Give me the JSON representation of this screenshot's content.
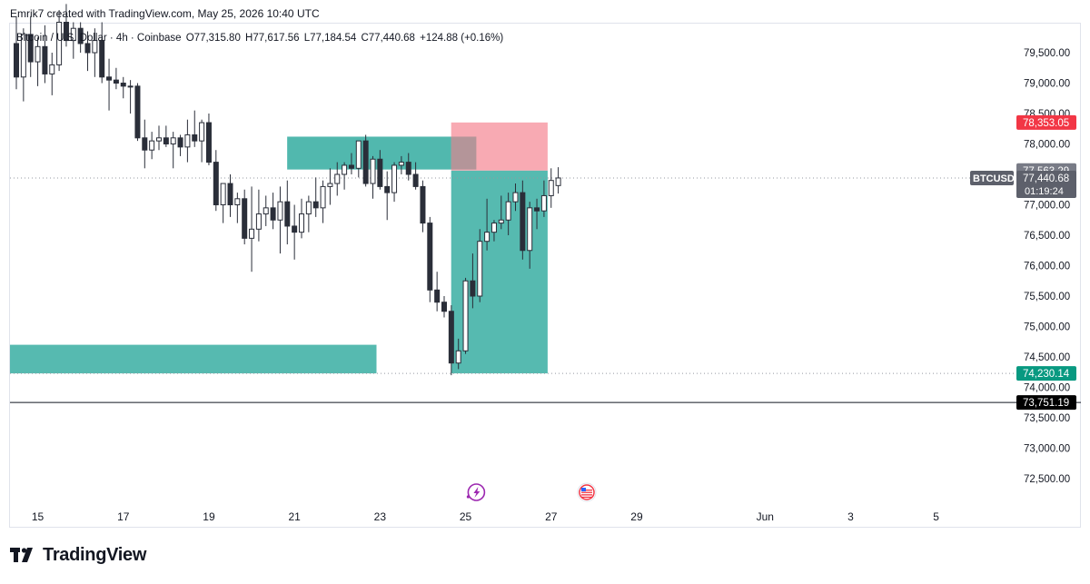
{
  "header": {
    "credit": "Emrik7 created with TradingView.com, May 25, 2026 10:40 UTC"
  },
  "legend": {
    "symbol": "Bitcoin / U.S. Dollar · 4h · Coinbase",
    "open": "O77,315.80",
    "high": "H77,617.56",
    "low": "L77,184.54",
    "close": "C77,440.68",
    "change": "+124.88 (+0.16%)"
  },
  "brand": {
    "name": "TradingView"
  },
  "colors": {
    "candle": "#2a2e39",
    "zone": "#26a69a",
    "stop": "#f7a1ab",
    "red_tag": "#f23645",
    "teal_tag": "#089981",
    "price_tag": "#5d606b",
    "black_tag": "#000000"
  },
  "chart_data": {
    "type": "candlestick",
    "symbol": "BTCUSD",
    "timeframe": "4h",
    "exchange": "Coinbase",
    "x_axis": {
      "ticks": [
        {
          "label": "15",
          "index": 3
        },
        {
          "label": "17",
          "index": 15
        },
        {
          "label": "19",
          "index": 27
        },
        {
          "label": "21",
          "index": 39
        },
        {
          "label": "23",
          "index": 51
        },
        {
          "label": "25",
          "index": 63
        },
        {
          "label": "27",
          "index": 75
        },
        {
          "label": "29",
          "index": 87
        },
        {
          "label": "Jun",
          "index": 105
        },
        {
          "label": "3",
          "index": 117
        },
        {
          "label": "5",
          "index": 129
        }
      ]
    },
    "y_axis": {
      "range": [
        72000,
        80000
      ],
      "ticks": [
        {
          "value": 72500,
          "label": "72,500.00"
        },
        {
          "value": 73000,
          "label": "73,000.00"
        },
        {
          "value": 73500,
          "label": "73,500.00"
        },
        {
          "value": 74000,
          "label": "74,000.00"
        },
        {
          "value": 74500,
          "label": "74,500.00"
        },
        {
          "value": 75000,
          "label": "75,000.00"
        },
        {
          "value": 75500,
          "label": "75,500.00"
        },
        {
          "value": 76000,
          "label": "76,000.00"
        },
        {
          "value": 76500,
          "label": "76,500.00"
        },
        {
          "value": 77000,
          "label": "77,000.00"
        },
        {
          "value": 78000,
          "label": "78,000.00"
        },
        {
          "value": 78500,
          "label": "78,500.00"
        },
        {
          "value": 79000,
          "label": "79,000.00"
        },
        {
          "value": 79500,
          "label": "79,500.00"
        }
      ]
    },
    "price_tags": [
      {
        "value": 78353.05,
        "label": "78,353.05",
        "style": "red"
      },
      {
        "value": 77563.29,
        "label": "77,563.29",
        "style": "gray"
      },
      {
        "value": 77440.68,
        "label": "77,440.68",
        "style": "current",
        "symbol": "BTCUSD",
        "countdown": "01:19:24"
      },
      {
        "value": 74230.14,
        "label": "74,230.14",
        "style": "teal"
      },
      {
        "value": 73751.19,
        "label": "73,751.19",
        "style": "black"
      }
    ],
    "horizontal_line": {
      "value": 73751.19
    },
    "zones": [
      {
        "kind": "demand",
        "from_index": 0,
        "to_index": 50,
        "low": 74230.14,
        "high": 74700
      },
      {
        "kind": "supply",
        "from_index": 39,
        "to_index": 64,
        "low": 77580,
        "high": 78120
      },
      {
        "kind": "target",
        "from_index": 62,
        "to_index": 74,
        "low": 74230.14,
        "high": 77563.29
      },
      {
        "kind": "stop",
        "from_index": 62,
        "to_index": 74,
        "low": 77563.29,
        "high": 78353.05
      }
    ],
    "event_markers": [
      {
        "name": "lightning-event",
        "index": 64
      },
      {
        "name": "us-flag-event",
        "index": 80
      }
    ],
    "candles": [
      [
        79650,
        80100,
        78900,
        79100
      ],
      [
        79100,
        79900,
        78700,
        79800
      ],
      [
        79800,
        80100,
        79100,
        79350
      ],
      [
        79350,
        79750,
        78950,
        79600
      ],
      [
        79600,
        79950,
        79000,
        79150
      ],
      [
        79150,
        79500,
        78800,
        79300
      ],
      [
        79300,
        80200,
        79200,
        80000
      ],
      [
        80000,
        80300,
        79600,
        79700
      ],
      [
        79700,
        80000,
        79400,
        79900
      ],
      [
        79900,
        80000,
        79500,
        79650
      ],
      [
        79650,
        79850,
        79200,
        79500
      ],
      [
        79500,
        79900,
        79100,
        79700
      ],
      [
        79700,
        80000,
        79000,
        79100
      ],
      [
        79100,
        79400,
        78550,
        79050
      ],
      [
        79050,
        79250,
        78900,
        79000
      ],
      [
        79000,
        79100,
        78750,
        78950
      ],
      [
        78950,
        79050,
        78500,
        78950
      ],
      [
        78950,
        79000,
        78050,
        78100
      ],
      [
        78100,
        78400,
        77600,
        77900
      ],
      [
        77900,
        78200,
        77750,
        78050
      ],
      [
        78050,
        78300,
        77900,
        78100
      ],
      [
        78100,
        78300,
        77950,
        78000
      ],
      [
        78000,
        78200,
        77600,
        78100
      ],
      [
        78100,
        78150,
        77800,
        77950
      ],
      [
        77950,
        78400,
        77700,
        78150
      ],
      [
        78150,
        78550,
        77950,
        78050
      ],
      [
        78050,
        78400,
        77700,
        78350
      ],
      [
        78350,
        78500,
        77650,
        77700
      ],
      [
        77700,
        77900,
        76900,
        77000
      ],
      [
        77000,
        77300,
        76700,
        77350
      ],
      [
        77350,
        77500,
        76800,
        77000
      ],
      [
        77000,
        77200,
        76700,
        77100
      ],
      [
        77100,
        77250,
        76350,
        76450
      ],
      [
        76450,
        77300,
        75900,
        76600
      ],
      [
        76600,
        77250,
        76400,
        76850
      ],
      [
        76850,
        77150,
        76650,
        76950
      ],
      [
        76950,
        77200,
        76600,
        76750
      ],
      [
        76750,
        77300,
        76200,
        77050
      ],
      [
        77050,
        77400,
        76350,
        76650
      ],
      [
        76650,
        77000,
        76100,
        76550
      ],
      [
        76550,
        77100,
        76450,
        76850
      ],
      [
        76850,
        77150,
        76550,
        77050
      ],
      [
        77050,
        77450,
        76800,
        76950
      ],
      [
        76950,
        77400,
        76700,
        77300
      ],
      [
        77300,
        77600,
        77000,
        77350
      ],
      [
        77350,
        77700,
        77150,
        77500
      ],
      [
        77500,
        77700,
        77250,
        77650
      ],
      [
        77650,
        77850,
        77500,
        77600
      ],
      [
        77600,
        78000,
        77450,
        78050
      ],
      [
        78050,
        78150,
        77300,
        77350
      ],
      [
        77350,
        77800,
        77100,
        77750
      ],
      [
        77750,
        77900,
        77250,
        77300
      ],
      [
        77300,
        77550,
        76750,
        77200
      ],
      [
        77200,
        77700,
        77050,
        77650
      ],
      [
        77650,
        77800,
        77500,
        77700
      ],
      [
        77700,
        77850,
        77400,
        77500
      ],
      [
        77500,
        77700,
        77250,
        77300
      ],
      [
        77300,
        77400,
        76550,
        76700
      ],
      [
        76700,
        76800,
        75400,
        75600
      ],
      [
        75600,
        75900,
        75250,
        75400
      ],
      [
        75400,
        75500,
        75150,
        75250
      ],
      [
        75250,
        75350,
        74200,
        74400
      ],
      [
        74400,
        74800,
        74300,
        74600
      ],
      [
        74600,
        75800,
        74550,
        75750
      ],
      [
        75750,
        76200,
        75300,
        75500
      ],
      [
        75500,
        76600,
        75400,
        76400
      ],
      [
        76400,
        77100,
        76250,
        76550
      ],
      [
        76550,
        76750,
        76400,
        76700
      ],
      [
        76700,
        77150,
        76600,
        76750
      ],
      [
        76750,
        77200,
        76500,
        77050
      ],
      [
        77050,
        77350,
        76900,
        77200
      ],
      [
        77200,
        77400,
        76100,
        76250
      ],
      [
        76250,
        77050,
        75950,
        76950
      ],
      [
        76950,
        77100,
        76600,
        76900
      ],
      [
        76900,
        77400,
        76800,
        77150
      ],
      [
        77150,
        77600,
        76950,
        77400
      ],
      [
        77316,
        77618,
        77185,
        77441
      ]
    ]
  }
}
